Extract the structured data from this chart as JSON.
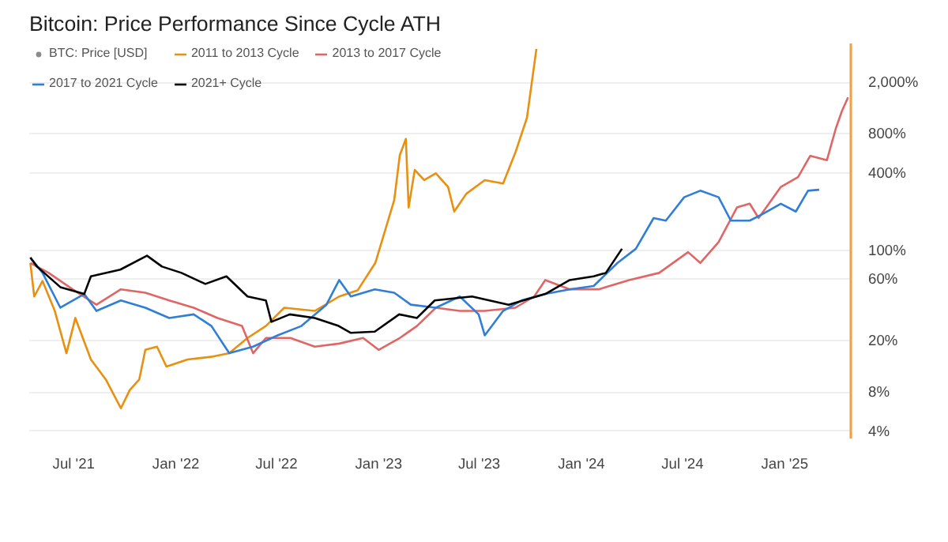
{
  "chart_data": {
    "type": "line",
    "title": "Bitcoin: Price Performance Since Cycle ATH",
    "log": "y",
    "grid": "y",
    "legend": "top left",
    "xlim": [
      "2021-04-12",
      "2025-04-30"
    ],
    "xticks": [
      {
        "value": "2021-07-01",
        "label": "Jul '21"
      },
      {
        "value": "2022-01-01",
        "label": "Jan '22"
      },
      {
        "value": "2022-07-01",
        "label": "Jul '22"
      },
      {
        "value": "2023-01-01",
        "label": "Jan '23"
      },
      {
        "value": "2023-07-01",
        "label": "Jul '23"
      },
      {
        "value": "2024-01-01",
        "label": "Jan '24"
      },
      {
        "value": "2024-07-01",
        "label": "Jul '24"
      },
      {
        "value": "2025-01-01",
        "label": "Jan '25"
      }
    ],
    "ylim": [
      3.5,
      4000
    ],
    "yticks": [
      {
        "value": 4,
        "label": "4%"
      },
      {
        "value": 8,
        "label": "8%"
      },
      {
        "value": 20,
        "label": "20%"
      },
      {
        "value": 60,
        "label": "60%"
      },
      {
        "value": 100,
        "label": "100%"
      },
      {
        "value": 400,
        "label": "400%"
      },
      {
        "value": 800,
        "label": "800%"
      },
      {
        "value": 2000,
        "label": "2,000%"
      }
    ],
    "series": [
      {
        "name": "BTC: Price [USD]",
        "color": "#8c8c8c"
      },
      {
        "name": "2011 to 2013 Cycle",
        "color": "#e8900f",
        "x": [
          "2021-04-14",
          "2021-04-21",
          "2021-05-06",
          "2021-05-28",
          "2021-06-18",
          "2021-07-04",
          "2021-08-01",
          "2021-08-28",
          "2021-09-24",
          "2021-10-10",
          "2021-10-27",
          "2021-11-07",
          "2021-11-28",
          "2021-12-15",
          "2022-01-22",
          "2022-03-05",
          "2022-04-07",
          "2022-05-10",
          "2022-06-12",
          "2022-07-15",
          "2022-09-08",
          "2022-10-22",
          "2022-11-24",
          "2022-12-26",
          "2023-01-29",
          "2023-02-08",
          "2023-02-19",
          "2023-02-24",
          "2023-03-07",
          "2023-03-24",
          "2023-04-14",
          "2023-05-06",
          "2023-05-17",
          "2023-06-08",
          "2023-07-11",
          "2023-08-13",
          "2023-09-04",
          "2023-09-25",
          "2023-10-12"
        ],
        "values": [
          80,
          44,
          58,
          34,
          16,
          30,
          14.3,
          10,
          6.0,
          8.3,
          10,
          17,
          18,
          12.6,
          14.3,
          15,
          16,
          21,
          26,
          36,
          34,
          44,
          49,
          80,
          245,
          545,
          730,
          215,
          420,
          350,
          395,
          310,
          200,
          275,
          350,
          330,
          570,
          1065,
          3630
        ]
      },
      {
        "name": "2013 to 2017 Cycle",
        "color": "#e06666",
        "x": [
          "2021-04-14",
          "2021-05-17",
          "2021-06-29",
          "2021-08-11",
          "2021-09-24",
          "2021-11-07",
          "2021-12-20",
          "2022-02-02",
          "2022-03-17",
          "2022-04-30",
          "2022-05-20",
          "2022-06-12",
          "2022-07-26",
          "2022-09-08",
          "2022-10-22",
          "2022-12-04",
          "2023-01-01",
          "2023-02-08",
          "2023-03-11",
          "2023-04-14",
          "2023-05-27",
          "2023-07-11",
          "2023-09-04",
          "2023-10-08",
          "2023-10-28",
          "2023-12-11",
          "2024-02-01",
          "2024-03-27",
          "2024-05-20",
          "2024-07-11",
          "2024-08-02",
          "2024-09-04",
          "2024-10-07",
          "2024-10-30",
          "2024-11-15",
          "2024-12-25",
          "2025-01-25",
          "2025-02-16",
          "2025-03-18",
          "2025-04-03",
          "2025-04-14",
          "2025-04-25"
        ],
        "values": [
          80,
          67,
          50,
          38,
          50,
          47,
          41,
          36,
          30,
          26,
          16,
          21,
          21,
          18,
          19,
          21,
          17,
          21,
          26,
          36,
          34,
          34,
          36,
          44,
          59,
          50,
          50,
          59,
          67,
          97,
          80,
          116,
          215,
          230,
          178,
          310,
          370,
          540,
          500,
          880,
          1200,
          1530
        ]
      },
      {
        "name": "2017 to 2021 Cycle",
        "color": "#2f7ed8",
        "x": [
          "2021-04-14",
          "2021-05-06",
          "2021-06-07",
          "2021-07-20",
          "2021-08-11",
          "2021-09-24",
          "2021-11-07",
          "2021-12-20",
          "2022-02-02",
          "2022-03-06",
          "2022-04-07",
          "2022-05-20",
          "2022-07-03",
          "2022-08-15",
          "2022-09-29",
          "2022-10-22",
          "2022-11-12",
          "2022-12-25",
          "2023-01-29",
          "2023-02-28",
          "2023-04-14",
          "2023-05-27",
          "2023-06-30",
          "2023-07-11",
          "2023-08-13",
          "2023-09-15",
          "2023-10-28",
          "2023-12-11",
          "2024-01-23",
          "2024-03-06",
          "2024-04-08",
          "2024-05-10",
          "2024-06-01",
          "2024-07-04",
          "2024-08-02",
          "2024-09-04",
          "2024-09-26",
          "2024-10-30",
          "2024-11-21",
          "2024-12-25",
          "2025-01-21",
          "2025-02-12",
          "2025-03-04"
        ],
        "values": [
          88,
          67,
          36,
          46,
          34,
          41,
          36,
          30,
          32,
          26,
          16,
          18,
          22,
          26,
          38,
          59,
          44,
          50,
          47,
          38,
          36,
          44,
          32,
          22,
          34,
          41,
          46,
          50,
          53,
          80,
          103,
          178,
          170,
          258,
          290,
          258,
          170,
          170,
          190,
          230,
          200,
          290,
          295
        ]
      },
      {
        "name": "2021+ Cycle",
        "color": "#000000",
        "x": [
          "2021-04-14",
          "2021-04-26",
          "2021-06-07",
          "2021-07-20",
          "2021-08-01",
          "2021-09-23",
          "2021-11-10",
          "2021-12-07",
          "2022-01-11",
          "2022-02-23",
          "2022-04-02",
          "2022-05-10",
          "2022-06-12",
          "2022-06-22",
          "2022-07-25",
          "2022-09-08",
          "2022-10-21",
          "2022-11-12",
          "2022-12-25",
          "2023-02-07",
          "2023-03-11",
          "2023-04-12",
          "2023-06-18",
          "2023-08-23",
          "2023-10-28",
          "2023-12-11",
          "2024-01-23",
          "2024-02-14",
          "2024-03-14"
        ],
        "values": [
          88,
          75,
          52,
          46,
          63,
          71,
          91,
          75,
          67,
          55,
          63,
          44,
          41,
          28,
          32,
          30,
          26,
          23,
          23.5,
          32,
          30,
          41,
          44,
          38,
          46,
          59,
          63,
          67,
          103
        ]
      }
    ]
  }
}
